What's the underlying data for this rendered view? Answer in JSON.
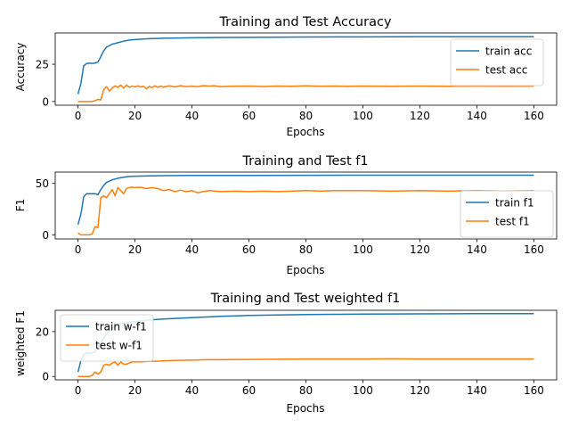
{
  "chart_data": [
    {
      "type": "line",
      "title": "Training and Test Accuracy",
      "xlabel": "Epochs",
      "ylabel": "Accuracy",
      "xlim": [
        -8,
        168
      ],
      "ylim": [
        -2.5,
        46
      ],
      "xticks": [
        0,
        20,
        40,
        60,
        80,
        100,
        120,
        140,
        160
      ],
      "yticks": [
        0,
        25
      ],
      "legend": "right",
      "series": [
        {
          "name": "train acc",
          "color": "#1f77b4",
          "points": [
            [
              0,
              5
            ],
            [
              1,
              12
            ],
            [
              2,
              24
            ],
            [
              3,
              25.5
            ],
            [
              4,
              25.8
            ],
            [
              5,
              25.6
            ],
            [
              6,
              25.8
            ],
            [
              7,
              26.5
            ],
            [
              8,
              30
            ],
            [
              9,
              34
            ],
            [
              10,
              36.5
            ],
            [
              12,
              38.5
            ],
            [
              14,
              39.5
            ],
            [
              16,
              40.5
            ],
            [
              18,
              41.3
            ],
            [
              20,
              41.6
            ],
            [
              25,
              42.2
            ],
            [
              30,
              42.5
            ],
            [
              40,
              42.8
            ],
            [
              50,
              43
            ],
            [
              60,
              43.1
            ],
            [
              80,
              43.3
            ],
            [
              100,
              43.4
            ],
            [
              120,
              43.5
            ],
            [
              140,
              43.5
            ],
            [
              160,
              43.5
            ]
          ]
        },
        {
          "name": "test acc",
          "color": "#ff7f0e",
          "points": [
            [
              0,
              0
            ],
            [
              1,
              0
            ],
            [
              2,
              0
            ],
            [
              3,
              0
            ],
            [
              4,
              0
            ],
            [
              5,
              0
            ],
            [
              6,
              0.5
            ],
            [
              7,
              1.5
            ],
            [
              8,
              1
            ],
            [
              9,
              8
            ],
            [
              10,
              10
            ],
            [
              11,
              7
            ],
            [
              12,
              9
            ],
            [
              13,
              10.5
            ],
            [
              14,
              9.5
            ],
            [
              15,
              11
            ],
            [
              16,
              9
            ],
            [
              17,
              11
            ],
            [
              18,
              9.5
            ],
            [
              19,
              10.3
            ],
            [
              20,
              9.8
            ],
            [
              21,
              10.5
            ],
            [
              22,
              9.7
            ],
            [
              23,
              10.3
            ],
            [
              24,
              8.5
            ],
            [
              25,
              10.2
            ],
            [
              26,
              9.3
            ],
            [
              27,
              10.5
            ],
            [
              28,
              9.5
            ],
            [
              29,
              10.4
            ],
            [
              30,
              9.6
            ],
            [
              32,
              10.5
            ],
            [
              34,
              9.8
            ],
            [
              36,
              10.6
            ],
            [
              38,
              10
            ],
            [
              40,
              10.3
            ],
            [
              42,
              10
            ],
            [
              44,
              10.6
            ],
            [
              46,
              10.4
            ],
            [
              48,
              10.5
            ],
            [
              50,
              10
            ],
            [
              55,
              10.3
            ],
            [
              60,
              10.4
            ],
            [
              65,
              10.1
            ],
            [
              70,
              10.4
            ],
            [
              75,
              10.2
            ],
            [
              80,
              10.5
            ],
            [
              85,
              10.2
            ],
            [
              90,
              10.4
            ],
            [
              95,
              10.2
            ],
            [
              100,
              10.4
            ],
            [
              110,
              10.2
            ],
            [
              120,
              10.4
            ],
            [
              130,
              10.2
            ],
            [
              140,
              10.3
            ],
            [
              150,
              10.2
            ],
            [
              160,
              10.3
            ]
          ]
        }
      ]
    },
    {
      "type": "line",
      "title": "Training and Test f1",
      "xlabel": "Epochs",
      "ylabel": "F1",
      "xlim": [
        -8,
        168
      ],
      "ylim": [
        -4,
        61
      ],
      "xticks": [
        0,
        20,
        40,
        60,
        80,
        100,
        120,
        140,
        160
      ],
      "yticks": [
        0,
        50
      ],
      "legend": "right",
      "series": [
        {
          "name": "train f1",
          "color": "#1f77b4",
          "points": [
            [
              0,
              10
            ],
            [
              1,
              20
            ],
            [
              2,
              37
            ],
            [
              3,
              40
            ],
            [
              4,
              40
            ],
            [
              5,
              40
            ],
            [
              6,
              40
            ],
            [
              7,
              39
            ],
            [
              8,
              44
            ],
            [
              9,
              48
            ],
            [
              10,
              51
            ],
            [
              12,
              53.5
            ],
            [
              14,
              55
            ],
            [
              16,
              56
            ],
            [
              18,
              56.8
            ],
            [
              20,
              57
            ],
            [
              25,
              57.3
            ],
            [
              30,
              57.5
            ],
            [
              40,
              57.7
            ],
            [
              60,
              57.8
            ],
            [
              80,
              57.9
            ],
            [
              100,
              58
            ],
            [
              120,
              58
            ],
            [
              140,
              58
            ],
            [
              160,
              58
            ]
          ]
        },
        {
          "name": "test f1",
          "color": "#ff7f0e",
          "points": [
            [
              0,
              2
            ],
            [
              1,
              0
            ],
            [
              2,
              0
            ],
            [
              3,
              0
            ],
            [
              4,
              0
            ],
            [
              5,
              1
            ],
            [
              6,
              8
            ],
            [
              7,
              7
            ],
            [
              8,
              36
            ],
            [
              9,
              38
            ],
            [
              10,
              36
            ],
            [
              11,
              40
            ],
            [
              12,
              44
            ],
            [
              13,
              38
            ],
            [
              14,
              46
            ],
            [
              15,
              43
            ],
            [
              16,
              40
            ],
            [
              17,
              45
            ],
            [
              18,
              46
            ],
            [
              19,
              46.3
            ],
            [
              20,
              46
            ],
            [
              22,
              46.3
            ],
            [
              24,
              45
            ],
            [
              26,
              46
            ],
            [
              28,
              45
            ],
            [
              30,
              43
            ],
            [
              32,
              44
            ],
            [
              34,
              42
            ],
            [
              36,
              43.5
            ],
            [
              38,
              42
            ],
            [
              40,
              43
            ],
            [
              42,
              41
            ],
            [
              44,
              42
            ],
            [
              46,
              43
            ],
            [
              50,
              42
            ],
            [
              55,
              42.5
            ],
            [
              60,
              42
            ],
            [
              65,
              42.5
            ],
            [
              70,
              42
            ],
            [
              75,
              42.5
            ],
            [
              80,
              43
            ],
            [
              85,
              42.5
            ],
            [
              90,
              43
            ],
            [
              100,
              43
            ],
            [
              110,
              42.5
            ],
            [
              120,
              43
            ],
            [
              130,
              42.5
            ],
            [
              140,
              43
            ],
            [
              150,
              42.5
            ],
            [
              160,
              43
            ]
          ]
        }
      ]
    },
    {
      "type": "line",
      "title": "Training and Test weighted f1",
      "xlabel": "Epochs",
      "ylabel": "weighted F1",
      "xlim": [
        -8,
        168
      ],
      "ylim": [
        -1.5,
        29.5
      ],
      "xticks": [
        0,
        20,
        40,
        60,
        80,
        100,
        120,
        140,
        160
      ],
      "yticks": [
        0,
        20
      ],
      "legend": "top-left",
      "series": [
        {
          "name": "train w-f1",
          "color": "#1f77b4",
          "points": [
            [
              0,
              2
            ],
            [
              1,
              7
            ],
            [
              2,
              10
            ],
            [
              3,
              10.5
            ],
            [
              4,
              10.5
            ],
            [
              5,
              10.5
            ],
            [
              6,
              11
            ],
            [
              8,
              15
            ],
            [
              10,
              19
            ],
            [
              12,
              21.5
            ],
            [
              15,
              23.5
            ],
            [
              20,
              24.5
            ],
            [
              25,
              25.2
            ],
            [
              30,
              25.6
            ],
            [
              40,
              26.2
            ],
            [
              50,
              26.8
            ],
            [
              60,
              27.2
            ],
            [
              70,
              27.4
            ],
            [
              80,
              27.6
            ],
            [
              90,
              27.7
            ],
            [
              100,
              27.8
            ],
            [
              120,
              27.9
            ],
            [
              140,
              28
            ],
            [
              160,
              28
            ]
          ]
        },
        {
          "name": "test w-f1",
          "color": "#ff7f0e",
          "points": [
            [
              0,
              0
            ],
            [
              1,
              0
            ],
            [
              2,
              0
            ],
            [
              3,
              0
            ],
            [
              4,
              0
            ],
            [
              5,
              0.5
            ],
            [
              6,
              2
            ],
            [
              7,
              1
            ],
            [
              8,
              2
            ],
            [
              9,
              5
            ],
            [
              10,
              5.5
            ],
            [
              11,
              5
            ],
            [
              12,
              6
            ],
            [
              13,
              6.5
            ],
            [
              14,
              5
            ],
            [
              15,
              6.5
            ],
            [
              16,
              5.5
            ],
            [
              17,
              5.5
            ],
            [
              18,
              6
            ],
            [
              19,
              6.5
            ],
            [
              20,
              6.5
            ],
            [
              22,
              6.5
            ],
            [
              25,
              6.8
            ],
            [
              28,
              6.8
            ],
            [
              30,
              7
            ],
            [
              35,
              7.2
            ],
            [
              40,
              7.3
            ],
            [
              45,
              7.5
            ],
            [
              50,
              7.5
            ],
            [
              60,
              7.6
            ],
            [
              70,
              7.7
            ],
            [
              80,
              7.8
            ],
            [
              90,
              7.8
            ],
            [
              100,
              7.8
            ],
            [
              110,
              7.9
            ],
            [
              120,
              7.8
            ],
            [
              130,
              7.8
            ],
            [
              140,
              7.8
            ],
            [
              150,
              7.8
            ],
            [
              160,
              7.8
            ]
          ]
        }
      ]
    }
  ]
}
